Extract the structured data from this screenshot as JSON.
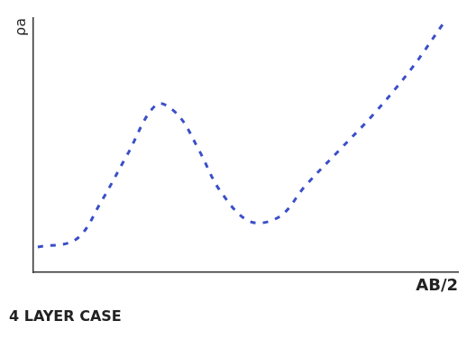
{
  "chart_data": {
    "type": "line",
    "title": "4 LAYER CASE",
    "x_label": "AB/2",
    "y_label": "ρa",
    "x": [
      0.1,
      1.0,
      1.6,
      2.2,
      2.9,
      3.4,
      3.9,
      4.4,
      5.1,
      5.8,
      6.4,
      7.2,
      8.0,
      8.9,
      9.7
    ],
    "values": [
      1.0,
      1.3,
      2.8,
      4.6,
      6.6,
      6.2,
      4.8,
      3.2,
      2.0,
      2.2,
      3.4,
      4.8,
      6.2,
      8.0,
      9.9
    ],
    "color": "#3b4fc8",
    "line_style": "dashed",
    "marker": "none",
    "xlim": [
      0,
      10
    ],
    "ylim": [
      0,
      10
    ],
    "grid": false,
    "tick_labels": false
  }
}
